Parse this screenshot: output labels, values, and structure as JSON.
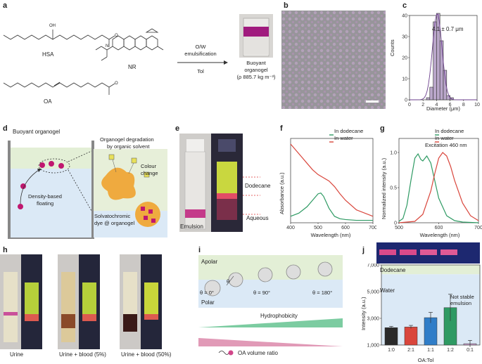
{
  "panel_labels": {
    "a": "a",
    "b": "b",
    "c": "c",
    "d": "d",
    "e": "e",
    "f": "f",
    "g": "g",
    "h": "h",
    "i": "i",
    "j": "j"
  },
  "a": {
    "hsa": "HSA",
    "oa": "OA",
    "nr": "NR",
    "oh": "OH",
    "o": "O",
    "n": "N",
    "arrow_top": "O/W",
    "arrow_mid": "emulsification",
    "arrow_bottom": "Tol",
    "result_l1": "Buoyant",
    "result_l2": "organogel",
    "result_l3": "(ρ 885.7 kg m⁻³)"
  },
  "c": {
    "chart_data": {
      "type": "bar",
      "title": "4.1 ± 0.7 μm",
      "xlabel": "Diameter (μm)",
      "ylabel": "Counts",
      "xlim": [
        0,
        10
      ],
      "ylim": [
        0,
        40
      ],
      "xticks": [
        0,
        2,
        4,
        6,
        8,
        10
      ],
      "yticks": [
        0,
        10,
        20,
        30,
        40
      ],
      "bins": [
        2.5,
        3.0,
        3.5,
        4.0,
        4.5,
        5.0,
        5.5,
        6.0
      ],
      "bin_width": 0.5,
      "values": [
        1,
        6,
        37,
        41,
        28,
        14,
        2,
        1
      ]
    },
    "xticks_l": [
      "0",
      "2",
      "4",
      "6",
      "8",
      "10"
    ],
    "yticks_l": [
      "0",
      "10",
      "20",
      "30",
      "40"
    ]
  },
  "d": {
    "title": "Buoyant organogel",
    "degradation": "Organogel degradation",
    "by_solvent": "by organic solvent",
    "colour_change": "Colour",
    "colour_change2": "change",
    "density": "Density-based",
    "floating": "floating",
    "dye1": "Solvatochromic",
    "dye2": "dye @ organogel"
  },
  "e": {
    "dodecane": "Dodecane",
    "aqueous": "Aqueous",
    "emulsion": "Emulsion"
  },
  "f": {
    "chart_data": {
      "type": "line",
      "xlabel": "Wavelength (nm)",
      "ylabel": "Absorbance (a.u.)",
      "xlim": [
        400,
        700
      ],
      "xticks": [
        400,
        500,
        600,
        700
      ],
      "series": [
        {
          "name": "In dodecane",
          "color": "#2e9a63",
          "x": [
            400,
            430,
            460,
            480,
            500,
            510,
            520,
            540,
            560,
            580,
            600,
            640,
            700
          ],
          "y": [
            0.08,
            0.12,
            0.2,
            0.28,
            0.36,
            0.37,
            0.33,
            0.18,
            0.08,
            0.05,
            0.04,
            0.03,
            0.03
          ]
        },
        {
          "name": "In water",
          "color": "#d9463c",
          "x": [
            400,
            420,
            440,
            460,
            480,
            500,
            520,
            540,
            560,
            580,
            600,
            640,
            700
          ],
          "y": [
            0.98,
            0.9,
            0.82,
            0.74,
            0.66,
            0.6,
            0.56,
            0.52,
            0.45,
            0.36,
            0.28,
            0.16,
            0.08
          ]
        }
      ]
    },
    "xticks_l": [
      "400",
      "500",
      "600",
      "700"
    ]
  },
  "g": {
    "chart_data": {
      "type": "line",
      "xlabel": "Wavelength (nm)",
      "ylabel": "Normalized intensity (a.u.)",
      "annotation": "Excitation 460 nm",
      "xlim": [
        500,
        700
      ],
      "ylim": [
        0,
        1.2
      ],
      "xticks": [
        500,
        600,
        700
      ],
      "yticks": [
        0,
        0.5,
        1.0
      ],
      "series": [
        {
          "name": "In dodecane",
          "color": "#2e9a63",
          "x": [
            500,
            510,
            520,
            530,
            540,
            548,
            555,
            560,
            570,
            580,
            590,
            600,
            620,
            640,
            660,
            700
          ],
          "y": [
            0.02,
            0.06,
            0.25,
            0.6,
            0.92,
            0.98,
            0.9,
            0.88,
            0.95,
            0.85,
            0.6,
            0.35,
            0.1,
            0.03,
            0.01,
            0
          ]
        },
        {
          "name": "In water",
          "color": "#d9463c",
          "x": [
            500,
            540,
            560,
            580,
            590,
            600,
            610,
            620,
            630,
            640,
            660,
            680,
            700
          ],
          "y": [
            0,
            0.02,
            0.12,
            0.45,
            0.7,
            0.92,
            1.0,
            0.95,
            0.8,
            0.6,
            0.28,
            0.1,
            0.03
          ]
        }
      ]
    },
    "xticks_l": [
      "500",
      "600",
      "700"
    ],
    "yticks_l": [
      "0",
      "0.5",
      "1.0"
    ]
  },
  "h": {
    "labels": [
      "Urine",
      "Urine + blood (5%)",
      "Urine + blood (50%)"
    ]
  },
  "i": {
    "apolar": "Apolar",
    "polar": "Polar",
    "theta": "θ",
    "angles": [
      "θ = 0°",
      "θ = 90°",
      "θ = 180°"
    ],
    "hydrophobicity": "Hydrophobicity",
    "oa_ratio": "OA volume ratio"
  },
  "j": {
    "chart_data": {
      "type": "bar",
      "xlabel": "OA:Tol",
      "ylabel": "Intensity (a.u.)",
      "categories": [
        "1:0",
        "2:1",
        "1:1",
        "1:2",
        "0:1"
      ],
      "values": [
        2300,
        2350,
        3050,
        3800,
        1100
      ],
      "errors": [
        100,
        120,
        400,
        1000,
        250
      ],
      "colors": [
        "#2a2a2a",
        "#d9463c",
        "#2f7dc8",
        "#2e9a63",
        "#c9a0cc"
      ],
      "ylim": [
        1000,
        7000
      ],
      "yticks": [
        1000,
        3000,
        5000,
        7000
      ]
    },
    "yticks_l": [
      "1,000",
      "3,000",
      "5,000",
      "7,000"
    ],
    "dodecane": "Dodecane",
    "water": "Water",
    "not_stable1": "Not stable",
    "not_stable2": "emulsion"
  }
}
